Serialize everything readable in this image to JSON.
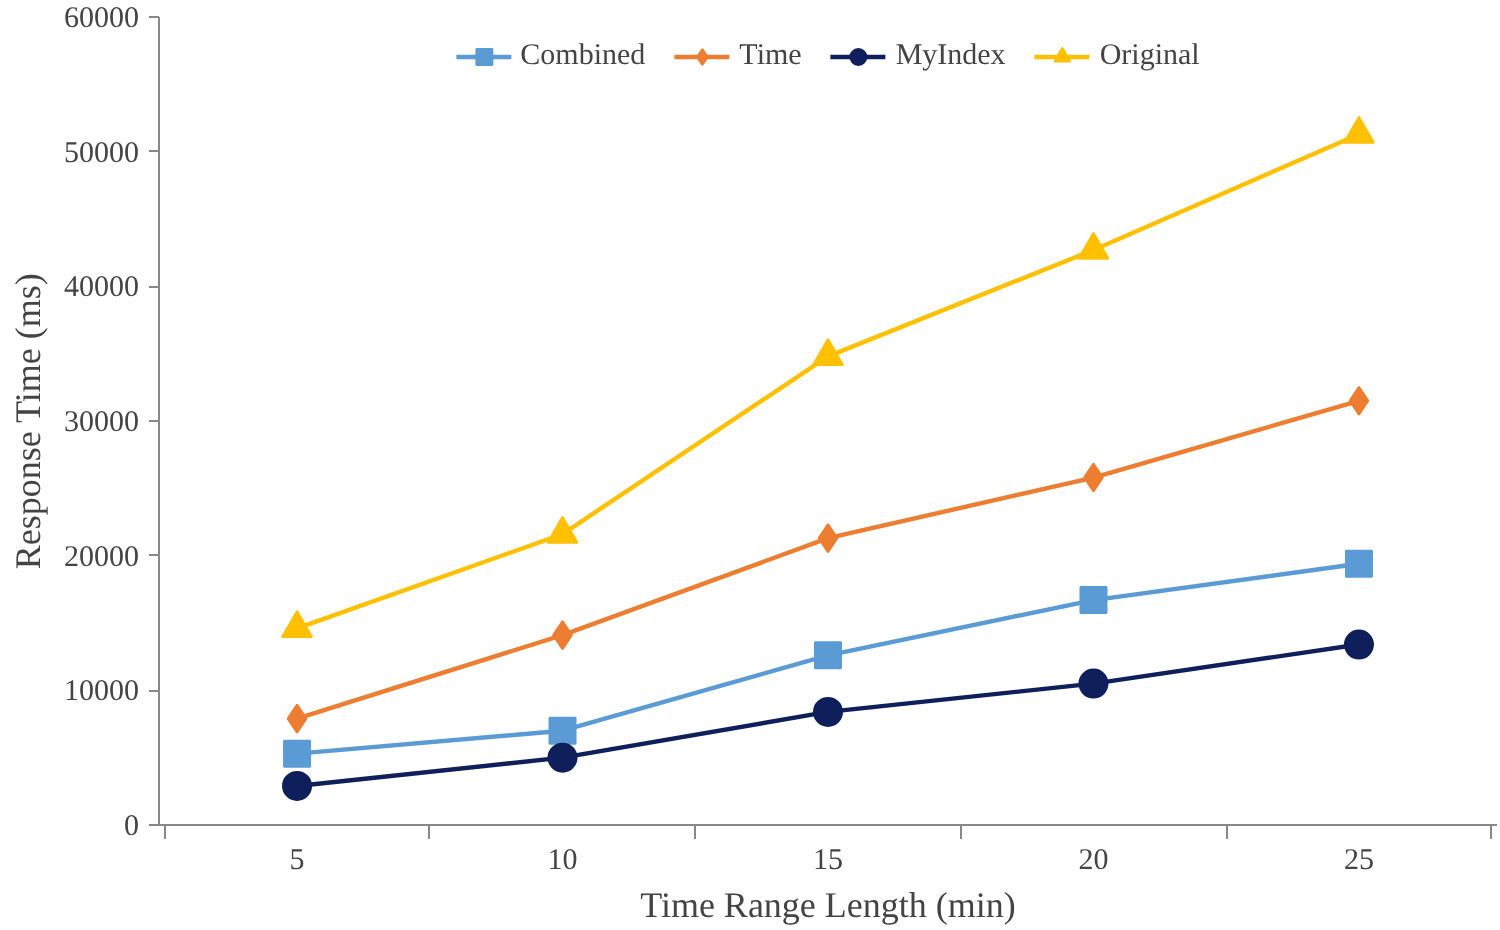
{
  "chart_data": {
    "type": "line",
    "xlabel": "Time Range Length (min)",
    "ylabel": "Response Time (ms)",
    "categories": [
      "5",
      "10",
      "15",
      "20",
      "25"
    ],
    "series": [
      {
        "name": "Combined",
        "color": "#5b9bd5",
        "marker": "square",
        "values": [
          5300,
          7000,
          12600,
          16700,
          19400
        ]
      },
      {
        "name": "Time",
        "color": "#ed7d31",
        "marker": "diamond",
        "values": [
          7900,
          14100,
          21300,
          25800,
          31500
        ]
      },
      {
        "name": "MyIndex",
        "color": "#0e1f5b",
        "marker": "circle",
        "values": [
          2900,
          5000,
          8400,
          10500,
          13400
        ]
      },
      {
        "name": "Original",
        "color": "#ffc000",
        "marker": "triangle",
        "values": [
          14600,
          21600,
          34800,
          42700,
          51300
        ]
      }
    ],
    "ylim": [
      0,
      60000
    ],
    "yticks": [
      0,
      10000,
      20000,
      30000,
      40000,
      50000,
      60000
    ],
    "grid": false,
    "legend": "top",
    "line_style": "solid"
  }
}
